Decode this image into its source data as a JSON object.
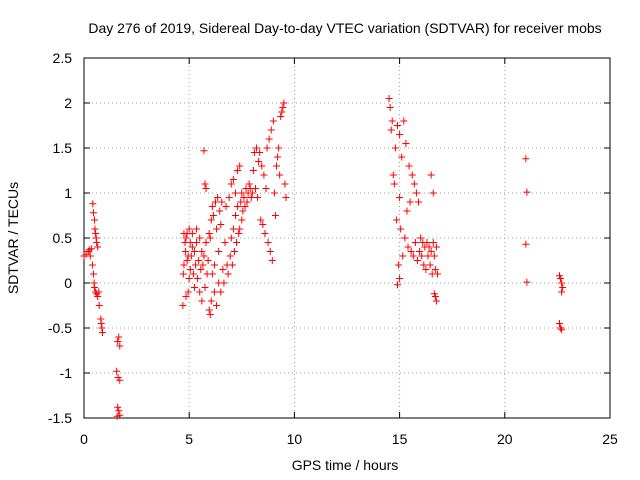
{
  "chart_data": {
    "type": "scatter",
    "title": "Day 276 of 2019, Sidereal Day-to-day VTEC variation (SDTVAR) for receiver mobs",
    "xlabel": "GPS time / hours",
    "ylabel": "SDTVAR / TECUs",
    "xlim": [
      0,
      25
    ],
    "ylim": [
      -1.5,
      2.5
    ],
    "x_ticks": [
      0,
      5,
      10,
      15,
      20,
      25
    ],
    "x_tick_labels": [
      "0",
      "5",
      "10",
      "15",
      "20",
      "25"
    ],
    "y_ticks": [
      -1.5,
      -1,
      -0.5,
      0,
      0.5,
      1,
      1.5,
      2,
      2.5
    ],
    "y_tick_labels": [
      "-1.5",
      "-1",
      "-0.5",
      "0",
      "0.5",
      "1",
      "1.5",
      "2",
      "2.5"
    ],
    "grid": true,
    "marker": "+",
    "color": "#ff0000",
    "series": [
      {
        "name": "SDTVAR",
        "points": [
          [
            0.0,
            0.3
          ],
          [
            0.1,
            0.32
          ],
          [
            0.2,
            0.35
          ],
          [
            0.25,
            0.37
          ],
          [
            0.3,
            0.3
          ],
          [
            0.35,
            0.38
          ],
          [
            0.4,
            0.2
          ],
          [
            0.42,
            0.88
          ],
          [
            0.45,
            0.1
          ],
          [
            0.45,
            0.78
          ],
          [
            0.48,
            0.0
          ],
          [
            0.5,
            0.7
          ],
          [
            0.5,
            -0.05
          ],
          [
            0.52,
            0.6
          ],
          [
            0.55,
            0.55
          ],
          [
            0.55,
            -0.1
          ],
          [
            0.58,
            0.5
          ],
          [
            0.6,
            0.45
          ],
          [
            0.6,
            -0.12
          ],
          [
            0.65,
            0.4
          ],
          [
            0.65,
            -0.15
          ],
          [
            0.7,
            -0.1
          ],
          [
            0.72,
            -0.25
          ],
          [
            0.8,
            -0.4
          ],
          [
            0.82,
            -0.45
          ],
          [
            0.85,
            -0.5
          ],
          [
            0.88,
            -0.55
          ],
          [
            1.6,
            -0.65
          ],
          [
            1.65,
            -0.6
          ],
          [
            1.7,
            -0.7
          ],
          [
            1.55,
            -0.98
          ],
          [
            1.62,
            -1.05
          ],
          [
            1.7,
            -1.08
          ],
          [
            1.6,
            -1.38
          ],
          [
            1.65,
            -1.42
          ],
          [
            1.7,
            -1.47
          ],
          [
            1.58,
            -1.48
          ],
          [
            4.7,
            -0.25
          ],
          [
            4.72,
            0.1
          ],
          [
            4.75,
            0.2
          ],
          [
            4.75,
            0.55
          ],
          [
            4.8,
            0.45
          ],
          [
            4.82,
            0.35
          ],
          [
            4.85,
            0.5
          ],
          [
            4.85,
            -0.15
          ],
          [
            4.9,
            0.25
          ],
          [
            4.9,
            0.55
          ],
          [
            4.95,
            0.3
          ],
          [
            4.95,
            -0.1
          ],
          [
            5.0,
            0.6
          ],
          [
            5.0,
            0.05
          ],
          [
            5.05,
            0.45
          ],
          [
            5.05,
            0.15
          ],
          [
            5.1,
            0.3
          ],
          [
            5.15,
            0.55
          ],
          [
            5.15,
            0.4
          ],
          [
            5.2,
            0.1
          ],
          [
            5.25,
            0.35
          ],
          [
            5.25,
            -0.05
          ],
          [
            5.3,
            0.2
          ],
          [
            5.35,
            0.6
          ],
          [
            5.35,
            0.45
          ],
          [
            5.4,
            0.05
          ],
          [
            5.45,
            0.25
          ],
          [
            5.5,
            0.5
          ],
          [
            5.5,
            -0.1
          ],
          [
            5.55,
            0.15
          ],
          [
            5.6,
            0.35
          ],
          [
            5.6,
            -0.2
          ],
          [
            5.65,
            0.2
          ],
          [
            5.7,
            0.3
          ],
          [
            5.75,
            -0.05
          ],
          [
            5.8,
            0.45
          ],
          [
            5.85,
            0.1
          ],
          [
            5.9,
            0.25
          ],
          [
            5.95,
            -0.3
          ],
          [
            5.95,
            0.55
          ],
          [
            6.0,
            0.5
          ],
          [
            6.0,
            -0.35
          ],
          [
            6.05,
            0.7
          ],
          [
            6.05,
            -0.2
          ],
          [
            6.1,
            0.85
          ],
          [
            6.1,
            0.1
          ],
          [
            6.15,
            0.75
          ],
          [
            6.2,
            -0.1
          ],
          [
            6.2,
            0.2
          ],
          [
            6.25,
            0.9
          ],
          [
            6.3,
            0.6
          ],
          [
            6.3,
            -0.25
          ],
          [
            6.35,
            0.95
          ],
          [
            6.4,
            0.0
          ],
          [
            6.4,
            0.35
          ],
          [
            6.45,
            0.8
          ],
          [
            6.5,
            -0.1
          ],
          [
            6.5,
            0.65
          ],
          [
            6.55,
            0.9
          ],
          [
            6.6,
            0.15
          ],
          [
            6.65,
            0.0
          ],
          [
            6.7,
            0.45
          ],
          [
            6.75,
            0.85
          ],
          [
            6.8,
            0.2
          ],
          [
            6.85,
            0.1
          ],
          [
            6.9,
            0.95
          ],
          [
            6.95,
            0.3
          ],
          [
            7.0,
            0.5
          ],
          [
            7.0,
            1.1
          ],
          [
            7.05,
            0.2
          ],
          [
            7.1,
            0.6
          ],
          [
            7.1,
            1.15
          ],
          [
            7.15,
            0.35
          ],
          [
            7.2,
            1.0
          ],
          [
            7.2,
            0.75
          ],
          [
            7.25,
            0.45
          ],
          [
            7.3,
            1.25
          ],
          [
            7.3,
            0.85
          ],
          [
            7.35,
            0.55
          ],
          [
            7.4,
            1.3
          ],
          [
            7.4,
            0.6
          ],
          [
            7.45,
            0.9
          ],
          [
            7.5,
            0.7
          ],
          [
            7.5,
            1.0
          ],
          [
            7.55,
            0.8
          ],
          [
            7.6,
            0.95
          ],
          [
            7.65,
            0.85
          ],
          [
            7.7,
            1.05
          ],
          [
            7.75,
            0.9
          ],
          [
            7.8,
            1.0
          ],
          [
            7.85,
            1.1
          ],
          [
            7.9,
            1.05
          ],
          [
            7.95,
            0.95
          ],
          [
            8.0,
            1.0
          ],
          [
            8.05,
            1.25
          ],
          [
            8.1,
            1.45
          ],
          [
            8.15,
            1.05
          ],
          [
            8.2,
            1.5
          ],
          [
            8.25,
            0.95
          ],
          [
            8.3,
            1.35
          ],
          [
            8.35,
            1.45
          ],
          [
            8.4,
            0.7
          ],
          [
            8.45,
            1.3
          ],
          [
            8.5,
            0.65
          ],
          [
            8.55,
            1.2
          ],
          [
            8.6,
            0.55
          ],
          [
            8.65,
            1.05
          ],
          [
            8.7,
            1.5
          ],
          [
            8.75,
            0.45
          ],
          [
            8.8,
            1.6
          ],
          [
            8.85,
            0.35
          ],
          [
            8.9,
            1.7
          ],
          [
            8.95,
            0.25
          ],
          [
            9.0,
            1.8
          ],
          [
            9.05,
            1.0
          ],
          [
            9.1,
            0.75
          ],
          [
            9.15,
            1.3
          ],
          [
            9.2,
            1.4
          ],
          [
            9.25,
            1.5
          ],
          [
            9.3,
            1.2
          ],
          [
            9.35,
            1.85
          ],
          [
            9.4,
            1.9
          ],
          [
            9.45,
            1.95
          ],
          [
            9.5,
            2.0
          ],
          [
            9.55,
            1.1
          ],
          [
            9.6,
            0.95
          ],
          [
            5.7,
            1.47
          ],
          [
            5.75,
            1.1
          ],
          [
            5.8,
            1.05
          ],
          [
            14.5,
            2.05
          ],
          [
            14.55,
            1.95
          ],
          [
            14.6,
            1.7
          ],
          [
            14.65,
            1.8
          ],
          [
            14.7,
            1.2
          ],
          [
            14.75,
            1.1
          ],
          [
            14.8,
            1.5
          ],
          [
            14.85,
            0.7
          ],
          [
            14.9,
            1.75
          ],
          [
            14.95,
            0.2
          ],
          [
            15.0,
            1.65
          ],
          [
            15.0,
            0.95
          ],
          [
            15.05,
            0.6
          ],
          [
            15.1,
            1.4
          ],
          [
            15.15,
            0.3
          ],
          [
            15.2,
            1.8
          ],
          [
            15.25,
            0.5
          ],
          [
            15.3,
            1.55
          ],
          [
            15.35,
            0.8
          ],
          [
            15.4,
            0.4
          ],
          [
            15.45,
            1.3
          ],
          [
            15.5,
            0.9
          ],
          [
            15.55,
            0.35
          ],
          [
            15.6,
            1.2
          ],
          [
            15.65,
            0.3
          ],
          [
            15.7,
            1.1
          ],
          [
            15.75,
            0.45
          ],
          [
            15.8,
            1.0
          ],
          [
            15.85,
            0.25
          ],
          [
            15.9,
            0.9
          ],
          [
            15.95,
            0.35
          ],
          [
            16.0,
            0.5
          ],
          [
            16.05,
            0.3
          ],
          [
            16.1,
            0.45
          ],
          [
            16.15,
            0.2
          ],
          [
            16.2,
            0.4
          ],
          [
            16.25,
            0.15
          ],
          [
            16.3,
            0.45
          ],
          [
            16.35,
            0.3
          ],
          [
            16.4,
            0.4
          ],
          [
            16.45,
            0.2
          ],
          [
            16.5,
            0.35
          ],
          [
            16.55,
            0.1
          ],
          [
            16.6,
            0.45
          ],
          [
            16.65,
            0.3
          ],
          [
            16.7,
            0.15
          ],
          [
            16.75,
            0.4
          ],
          [
            16.8,
            0.1
          ],
          [
            16.5,
            1.2
          ],
          [
            16.6,
            1.0
          ],
          [
            16.7,
            -0.15
          ],
          [
            16.75,
            -0.2
          ],
          [
            16.65,
            -0.12
          ],
          [
            14.9,
            -0.02
          ],
          [
            15.0,
            0.05
          ],
          [
            21.0,
            1.38
          ],
          [
            21.05,
            1.01
          ],
          [
            21.0,
            0.43
          ],
          [
            21.05,
            0.01
          ],
          [
            22.6,
            0.08
          ],
          [
            22.65,
            0.05
          ],
          [
            22.7,
            0.0
          ],
          [
            22.75,
            -0.05
          ],
          [
            22.7,
            -0.1
          ],
          [
            22.6,
            -0.45
          ],
          [
            22.65,
            -0.5
          ],
          [
            22.7,
            -0.52
          ]
        ]
      }
    ]
  }
}
